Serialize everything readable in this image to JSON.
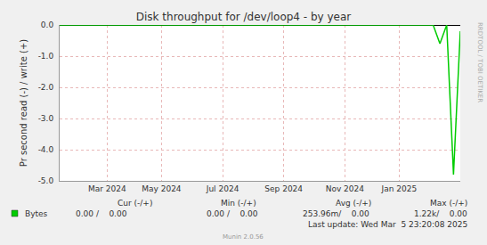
{
  "chart_data": {
    "type": "line",
    "title": "Disk throughput for /dev/loop4 - by year",
    "y_label": "Pr second read (-) / write (+)",
    "categories": [
      null,
      null,
      null,
      null,
      null,
      null,
      null,
      "Mar 2024",
      null,
      null,
      null,
      null,
      null,
      null,
      null,
      "May 2024",
      null,
      null,
      null,
      null,
      null,
      null,
      null,
      null,
      "Jul 2024",
      null,
      null,
      null,
      null,
      null,
      null,
      null,
      null,
      "Sep 2024",
      null,
      null,
      null,
      null,
      null,
      null,
      null,
      null,
      "Nov 2024",
      null,
      null,
      null,
      null,
      null,
      null,
      null,
      "Jan 2025",
      null,
      null,
      null,
      null,
      null,
      null,
      null,
      null,
      null
    ],
    "series": [
      {
        "name": "Bytes",
        "color": "#00cc00",
        "values": [
          0,
          0,
          0,
          0,
          0,
          0,
          0,
          0,
          0,
          0,
          0,
          0,
          0,
          0,
          0,
          0,
          0,
          0,
          0,
          0,
          0,
          0,
          0,
          0,
          0,
          0,
          0,
          0,
          0,
          0,
          0,
          0,
          0,
          0,
          0,
          0,
          0,
          0,
          0,
          0,
          0,
          0,
          0,
          0,
          0,
          0,
          0,
          0,
          0,
          0,
          0,
          0,
          0,
          0,
          0,
          0,
          -0.6,
          0,
          -4.8,
          -0.2
        ]
      }
    ],
    "ylim": [
      -5,
      0
    ],
    "yticks": [
      {
        "value": 0,
        "label": "0.0"
      },
      {
        "value": -1,
        "label": "-1.0"
      },
      {
        "value": -2,
        "label": "-2.0"
      },
      {
        "value": -3,
        "label": "-3.0"
      },
      {
        "value": -4,
        "label": "-4.0"
      },
      {
        "value": -5,
        "label": "-5.0"
      }
    ],
    "grid": true,
    "legend_table": {
      "headers": [
        "Cur (-/+)",
        "Min (-/+)",
        "Avg (-/+)",
        "Max (-/+)"
      ],
      "rows": [
        {
          "name": "Bytes",
          "cells": [
            "0.00 /    0.00",
            "0.00 /    0.00",
            "253.96m/    0.00",
            "1.22k/    0.00"
          ]
        }
      ]
    },
    "last_update": "Last update: Wed Mar  5 23:20:08 2025",
    "watermark": "RRDTOOL / TOBI OETIKER",
    "footer": "Munin 2.0.56"
  }
}
